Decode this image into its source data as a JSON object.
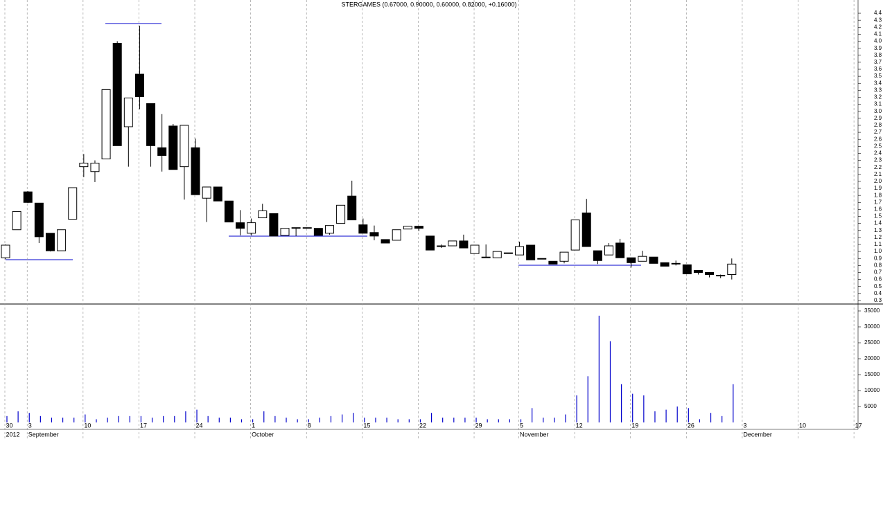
{
  "chart_data": {
    "type": "candlestick",
    "title": "STERGAMES (0.67000, 0.90000, 0.60000, 0.82000, +0.16000)",
    "categories": [
      "30",
      null,
      "3",
      null,
      null,
      null,
      null,
      "10",
      null,
      null,
      null,
      null,
      "17",
      null,
      null,
      null,
      null,
      "24",
      null,
      null,
      null,
      null,
      "1",
      null,
      null,
      null,
      null,
      "8",
      null,
      null,
      null,
      null,
      "15",
      null,
      null,
      null,
      null,
      "22",
      null,
      null,
      null,
      null,
      "29",
      null,
      null,
      null,
      "5",
      null,
      null,
      null,
      null,
      "12",
      null,
      null,
      null,
      null,
      "19",
      null,
      null,
      null,
      null,
      "26",
      null,
      null,
      null,
      null,
      "3",
      null,
      null,
      null,
      null,
      "10",
      null,
      null,
      null,
      null,
      "17"
    ],
    "months": [
      "2012",
      null,
      "September",
      null,
      null,
      null,
      null,
      null,
      null,
      null,
      null,
      null,
      null,
      null,
      null,
      null,
      null,
      null,
      null,
      null,
      null,
      null,
      "October",
      null,
      null,
      null,
      null,
      null,
      null,
      null,
      null,
      null,
      null,
      null,
      null,
      null,
      null,
      null,
      null,
      null,
      null,
      null,
      null,
      null,
      null,
      null,
      "November",
      null,
      null,
      null,
      null,
      null,
      null,
      null,
      null,
      null,
      null,
      null,
      null,
      null,
      null,
      null,
      null,
      null,
      null,
      null,
      "December",
      null,
      null,
      null,
      null,
      null,
      null,
      null,
      null,
      null,
      null
    ],
    "open": [
      0.91,
      1.31,
      1.85,
      1.69,
      1.26,
      1.01,
      1.46,
      2.21,
      2.14,
      2.32,
      3.97,
      2.78,
      3.53,
      3.11,
      2.48,
      2.79,
      2.21,
      2.48,
      1.76,
      1.92,
      1.72,
      1.41,
      1.26,
      1.48,
      1.54,
      1.23,
      1.33,
      1.34,
      1.33,
      1.26,
      1.4,
      1.79,
      1.38,
      1.27,
      1.17,
      1.16,
      1.32,
      1.36,
      1.22,
      1.08,
      1.08,
      1.15,
      0.97,
      0.92,
      0.91,
      0.98,
      0.95,
      1.09,
      0.9,
      0.86,
      0.86,
      1.02,
      1.55,
      1.01,
      0.95,
      1.12,
      0.91,
      0.86,
      0.92,
      0.84,
      0.83,
      0.81,
      0.73,
      0.7,
      0.66,
      0.67,
      null,
      null,
      null,
      null,
      null,
      null,
      null,
      null,
      null,
      null,
      null
    ],
    "high": [
      1.1,
      1.57,
      1.86,
      1.69,
      1.26,
      1.31,
      1.91,
      2.39,
      2.3,
      3.31,
      4.0,
      3.19,
      4.22,
      3.11,
      2.96,
      2.82,
      2.8,
      2.61,
      1.92,
      1.92,
      1.72,
      1.59,
      1.47,
      1.68,
      1.54,
      1.33,
      1.34,
      1.34,
      1.33,
      1.37,
      1.66,
      2.01,
      1.47,
      1.37,
      1.17,
      1.31,
      1.36,
      1.36,
      1.22,
      1.1,
      1.15,
      1.24,
      1.09,
      1.1,
      1.0,
      0.98,
      1.14,
      1.09,
      0.9,
      0.86,
      0.99,
      1.45,
      1.75,
      1.01,
      1.12,
      1.18,
      0.91,
      1.01,
      0.92,
      0.84,
      0.87,
      0.81,
      0.73,
      0.7,
      0.67,
      0.9,
      null,
      null,
      null,
      null,
      null,
      null,
      null,
      null,
      null,
      null,
      null
    ],
    "low": [
      0.89,
      1.31,
      1.69,
      1.12,
      1.0,
      1.01,
      1.46,
      2.06,
      1.99,
      2.32,
      2.51,
      2.21,
      3.03,
      2.21,
      2.14,
      2.17,
      1.74,
      1.81,
      1.42,
      1.72,
      1.42,
      1.23,
      1.23,
      1.48,
      1.22,
      1.23,
      1.22,
      1.33,
      1.23,
      1.24,
      1.4,
      1.45,
      1.26,
      1.16,
      1.12,
      1.16,
      1.32,
      1.29,
      1.02,
      1.05,
      1.08,
      1.05,
      0.97,
      0.92,
      0.91,
      0.97,
      0.95,
      0.88,
      0.9,
      0.82,
      0.83,
      1.02,
      1.07,
      0.82,
      0.95,
      0.91,
      0.77,
      0.86,
      0.83,
      0.79,
      0.8,
      0.68,
      0.67,
      0.63,
      0.62,
      0.6,
      null,
      null,
      null,
      null,
      null,
      null,
      null,
      null,
      null,
      null,
      null
    ],
    "close": [
      1.09,
      1.57,
      1.7,
      1.21,
      1.01,
      1.31,
      1.91,
      2.26,
      2.26,
      3.31,
      2.51,
      3.19,
      3.21,
      2.51,
      2.37,
      2.17,
      2.8,
      1.81,
      1.92,
      1.72,
      1.42,
      1.33,
      1.41,
      1.58,
      1.22,
      1.33,
      1.34,
      1.34,
      1.23,
      1.37,
      1.66,
      1.45,
      1.26,
      1.22,
      1.12,
      1.31,
      1.36,
      1.33,
      1.02,
      1.08,
      1.15,
      1.05,
      1.09,
      0.92,
      1.0,
      0.98,
      1.07,
      0.88,
      0.9,
      0.82,
      0.99,
      1.45,
      1.07,
      0.87,
      1.08,
      0.91,
      0.84,
      0.93,
      0.83,
      0.79,
      0.83,
      0.68,
      0.7,
      0.67,
      0.66,
      0.82,
      null,
      null,
      null,
      null,
      null,
      null,
      null,
      null,
      null,
      null,
      null
    ],
    "volume": [
      2000,
      3500,
      3000,
      2000,
      1500,
      1500,
      1500,
      2500,
      1000,
      1500,
      2000,
      2000,
      2000,
      1500,
      2000,
      2000,
      3500,
      4000,
      2000,
      1500,
      1500,
      1000,
      1000,
      3500,
      2000,
      1500,
      1000,
      1000,
      1500,
      2000,
      2500,
      3000,
      1500,
      1500,
      1500,
      1000,
      1000,
      1000,
      3000,
      1500,
      1500,
      1500,
      1500,
      1000,
      1000,
      1000,
      1000,
      4500,
      1500,
      1500,
      2500,
      8500,
      14500,
      33500,
      25500,
      12000,
      9000,
      8500,
      3500,
      4000,
      5000,
      4500,
      1000,
      3000,
      2000,
      12000,
      null,
      null,
      null,
      null,
      null,
      null,
      null,
      null,
      null,
      null,
      null
    ],
    "up_color": "#ffffff",
    "down_color": "#000000",
    "volume_color": "#0000cc",
    "ylim": [
      0.25,
      4.45
    ],
    "yticks": [
      0.3,
      0.4,
      0.5,
      0.6,
      0.7,
      0.8,
      0.9,
      {
        "value": 1,
        "label": "1.0"
      },
      1.1,
      1.2,
      1.3,
      1.4,
      1.5,
      1.6,
      1.7,
      1.8,
      1.9,
      {
        "value": 2,
        "label": "2.0"
      },
      2.1,
      2.2,
      2.3,
      2.4,
      2.5,
      2.6,
      2.7,
      2.8,
      2.9,
      {
        "value": 3,
        "label": "3.0"
      },
      3.1,
      3.2,
      3.3,
      3.4,
      3.5,
      3.6,
      3.7,
      3.8,
      3.9,
      {
        "value": 4,
        "label": "4.0"
      },
      4.1,
      4.2,
      4.3,
      4.4
    ],
    "volume_ylim": [
      0,
      37174
    ],
    "volume_yticks": [
      5000,
      10000,
      15000,
      20000,
      25000,
      30000,
      35000
    ],
    "grid": true
  }
}
